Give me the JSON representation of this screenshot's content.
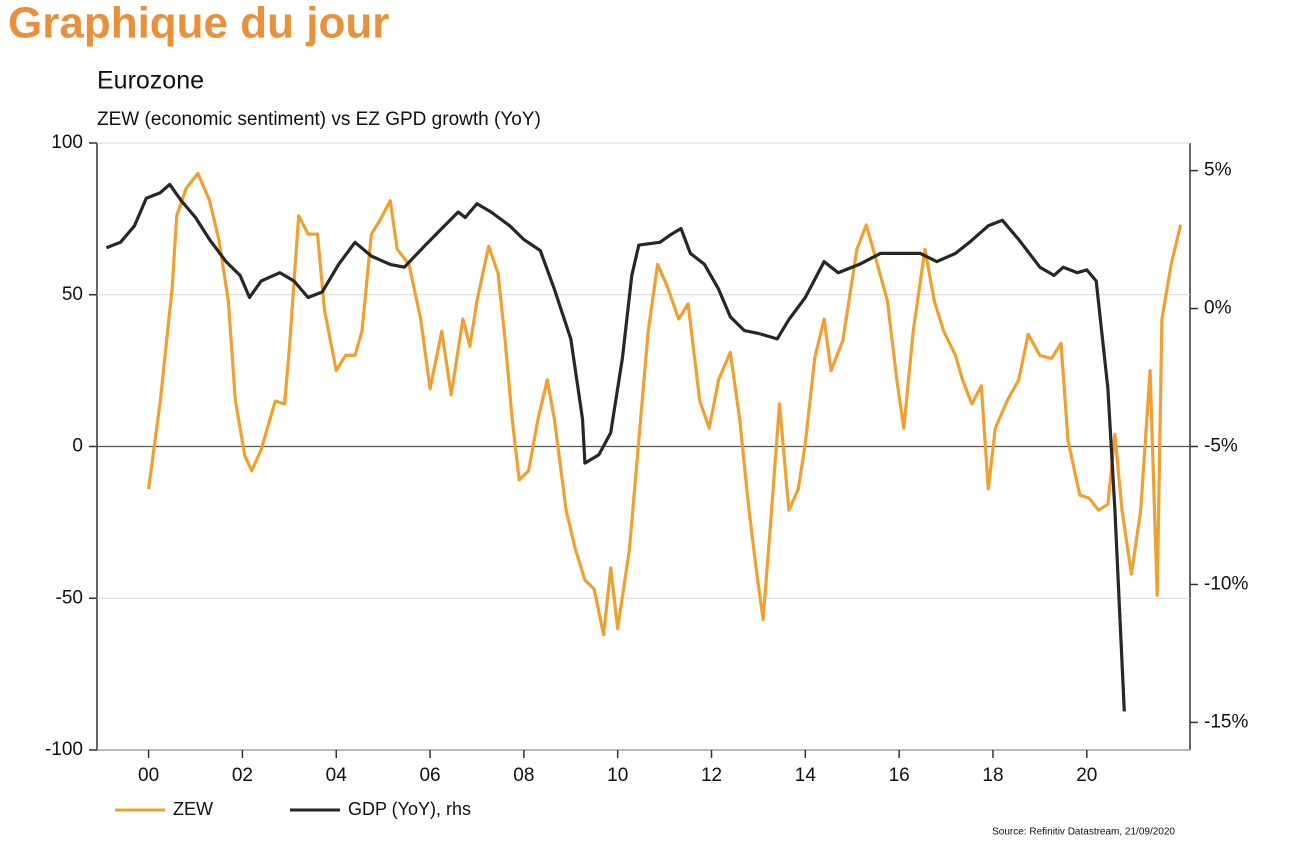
{
  "header": {
    "title": "Graphique du jour"
  },
  "chart_data": {
    "type": "line",
    "title": "Eurozone",
    "subtitle": "ZEW (economic sentiment) vs EZ GPD growth (YoY)",
    "source": "Source: Refinitiv Datastream, 21/09/2020",
    "xlim": [
      1998.9,
      2022.2
    ],
    "xticks": [
      {
        "value": 2000,
        "label": "00"
      },
      {
        "value": 2002,
        "label": "02"
      },
      {
        "value": 2004,
        "label": "04"
      },
      {
        "value": 2006,
        "label": "06"
      },
      {
        "value": 2008,
        "label": "08"
      },
      {
        "value": 2010,
        "label": "10"
      },
      {
        "value": 2012,
        "label": "12"
      },
      {
        "value": 2014,
        "label": "14"
      },
      {
        "value": 2016,
        "label": "16"
      },
      {
        "value": 2018,
        "label": "18"
      },
      {
        "value": 2020,
        "label": "20"
      }
    ],
    "ylim": [
      -100,
      100
    ],
    "yticks": [
      100,
      50,
      0,
      -50,
      -100
    ],
    "y2lim": [
      -16,
      6
    ],
    "y2ticks": [
      {
        "value": 5,
        "label": "5%"
      },
      {
        "value": 0,
        "label": "0%"
      },
      {
        "value": -5,
        "label": "-5%"
      },
      {
        "value": -10,
        "label": "-10%"
      },
      {
        "value": -15,
        "label": "-15%"
      }
    ],
    "grid": true,
    "legend": "bottom",
    "series": [
      {
        "name": "ZEW",
        "color": "#f0a030",
        "axis": "y",
        "x": [
          2000.0,
          2000.25,
          2000.5,
          2000.6,
          2000.8,
          2001.05,
          2001.3,
          2001.5,
          2001.7,
          2001.85,
          2002.05,
          2002.2,
          2002.4,
          2002.7,
          2002.9,
          2003.0,
          2003.2,
          2003.4,
          2003.6,
          2003.75,
          2004.0,
          2004.2,
          2004.4,
          2004.55,
          2004.75,
          2004.95,
          2005.15,
          2005.3,
          2005.55,
          2005.8,
          2006.0,
          2006.25,
          2006.45,
          2006.7,
          2006.85,
          2007.0,
          2007.25,
          2007.45,
          2007.6,
          2007.75,
          2007.9,
          2008.1,
          2008.3,
          2008.5,
          2008.65,
          2008.9,
          2009.1,
          2009.3,
          2009.5,
          2009.7,
          2009.85,
          2010.0,
          2010.25,
          2010.45,
          2010.65,
          2010.85,
          2011.05,
          2011.3,
          2011.5,
          2011.75,
          2011.95,
          2012.15,
          2012.4,
          2012.6,
          2012.8,
          2012.95,
          2013.1,
          2013.25,
          2013.45,
          2013.65,
          2013.85,
          2014.0,
          2014.2,
          2014.4,
          2014.55,
          2014.8,
          2015.1,
          2015.3,
          2015.5,
          2015.75,
          2015.95,
          2016.1,
          2016.3,
          2016.55,
          2016.75,
          2016.95,
          2017.2,
          2017.35,
          2017.55,
          2017.75,
          2017.9,
          2018.05,
          2018.3,
          2018.55,
          2018.75,
          2019.0,
          2019.25,
          2019.45,
          2019.6,
          2019.85,
          2020.05,
          2020.25,
          2020.45,
          2020.6,
          2020.75,
          2020.95,
          2021.15,
          2021.35,
          2021.5,
          2021.6,
          2021.8,
          2022.0
        ],
        "values": [
          -14,
          15,
          52,
          76,
          85,
          90,
          81,
          68,
          48,
          15,
          -3,
          -8,
          -1,
          15,
          14,
          32,
          76,
          70,
          70,
          45,
          25,
          30,
          30,
          38,
          70,
          75,
          81,
          65,
          60,
          42,
          19,
          38,
          17,
          42,
          33,
          48,
          66,
          57,
          35,
          9,
          -11,
          -8,
          9,
          22,
          9,
          -21,
          -34,
          -44,
          -47,
          -62,
          -40,
          -60,
          -34,
          2,
          38,
          60,
          53,
          42,
          47,
          15,
          6,
          22,
          31,
          9,
          -21,
          -40,
          -57,
          -27,
          14,
          -21,
          -14,
          1,
          29,
          42,
          25,
          35,
          65,
          73,
          62,
          48,
          22,
          6,
          38,
          65,
          48,
          38,
          30,
          22,
          14,
          20,
          -14,
          6,
          15,
          22,
          37,
          30,
          29,
          34,
          2,
          -16,
          -17,
          -21,
          -19,
          4,
          -21,
          -42,
          -21,
          25,
          -49,
          42,
          60,
          73
        ]
      },
      {
        "name": "GDP (YoY), rhs",
        "color": "#2b2622",
        "axis": "y2",
        "x": [
          1999.1,
          1999.4,
          1999.7,
          1999.95,
          2000.25,
          2000.45,
          2000.7,
          2001.0,
          2001.3,
          2001.65,
          2001.95,
          2002.15,
          2002.4,
          2002.8,
          2003.1,
          2003.4,
          2003.7,
          2004.05,
          2004.4,
          2004.75,
          2005.15,
          2005.45,
          2005.9,
          2006.25,
          2006.6,
          2006.75,
          2007.0,
          2007.3,
          2007.7,
          2008.0,
          2008.35,
          2008.65,
          2009.0,
          2009.25,
          2009.3,
          2009.6,
          2009.85,
          2010.1,
          2010.3,
          2010.45,
          2010.9,
          2011.15,
          2011.35,
          2011.55,
          2011.85,
          2012.15,
          2012.4,
          2012.7,
          2013.0,
          2013.4,
          2013.65,
          2014.0,
          2014.4,
          2014.7,
          2015.15,
          2015.6,
          2016.0,
          2016.45,
          2016.8,
          2017.2,
          2017.5,
          2017.9,
          2018.2,
          2018.55,
          2019.0,
          2019.3,
          2019.5,
          2019.8,
          2020.0,
          2020.2,
          2020.45,
          2020.6,
          2020.8
        ],
        "values": [
          2.2,
          2.4,
          3.0,
          4.0,
          4.2,
          4.5,
          3.9,
          3.3,
          2.5,
          1.7,
          1.2,
          0.4,
          1.0,
          1.3,
          1.0,
          0.4,
          0.6,
          1.6,
          2.4,
          1.9,
          1.6,
          1.5,
          2.3,
          2.9,
          3.5,
          3.3,
          3.8,
          3.5,
          3.0,
          2.5,
          2.1,
          0.7,
          -1.1,
          -4.0,
          -5.6,
          -5.3,
          -4.5,
          -1.8,
          1.2,
          2.3,
          2.4,
          2.7,
          2.9,
          2.0,
          1.6,
          0.7,
          -0.3,
          -0.8,
          -0.9,
          -1.1,
          -0.4,
          0.4,
          1.7,
          1.3,
          1.6,
          2.0,
          2.0,
          2.0,
          1.7,
          2.0,
          2.4,
          3.0,
          3.2,
          2.5,
          1.5,
          1.2,
          1.5,
          1.3,
          1.4,
          1.0,
          -2.9,
          -7.3,
          -14.6
        ]
      }
    ]
  }
}
